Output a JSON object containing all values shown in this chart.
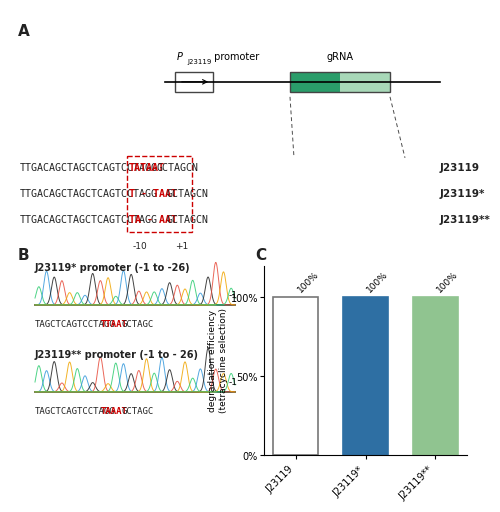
{
  "panel_A_label": "A",
  "panel_B_label": "B",
  "panel_C_label": "C",
  "seq_prefix": "TTGACAGCTAGCTCAGTCCTAGG",
  "red_parts": [
    "TATAAT",
    "T - TAAT",
    "TA - AAT"
  ],
  "seq_suffix": "GCTAGCN",
  "seq_labels": [
    "J23119",
    "J23119*",
    "J23119**"
  ],
  "minus10_label": "-10",
  "plus1_label": "+1",
  "bar_categories": [
    "J23119",
    "J23119*",
    "J23119**"
  ],
  "bar_values": [
    100,
    100,
    100
  ],
  "bar_colors": [
    "#ffffff",
    "#2e6fa3",
    "#90c490"
  ],
  "bar_edge_color_0": "#777777",
  "bar_edge_color_1": "#2e6fa3",
  "bar_edge_color_2": "#90c490",
  "ylabel": "degradation efficiency\n(tetracycline selection)",
  "yticks": [
    0,
    50,
    100
  ],
  "ytick_labels": [
    "0%",
    "50%",
    "100%"
  ],
  "ylim": [
    0,
    120
  ],
  "seq_b1_title": "J23119* promoter (-1 to -26)",
  "seq_b1_black": "TAGCTCAGTCCTAGG",
  "seq_b1_red": "TTAAT",
  "seq_b1_black2": "GCTAGC",
  "seq_b2_title": "J23119** promoter (-1 to - 26)",
  "seq_b2_black": "TAGCTCAGTCCTAGG",
  "seq_b2_red": "TAAAT",
  "seq_b2_black2": "GCTAGC",
  "bg_color": "#ffffff",
  "red_color": "#cc0000",
  "box_color": "#cc0000",
  "dark_green": "#2a9d6a",
  "light_green": "#a8d8b8",
  "promoter_label_italic": "P",
  "promoter_subscript": "J23119",
  "promoter_text": " promoter",
  "grna_label": "gRNA"
}
